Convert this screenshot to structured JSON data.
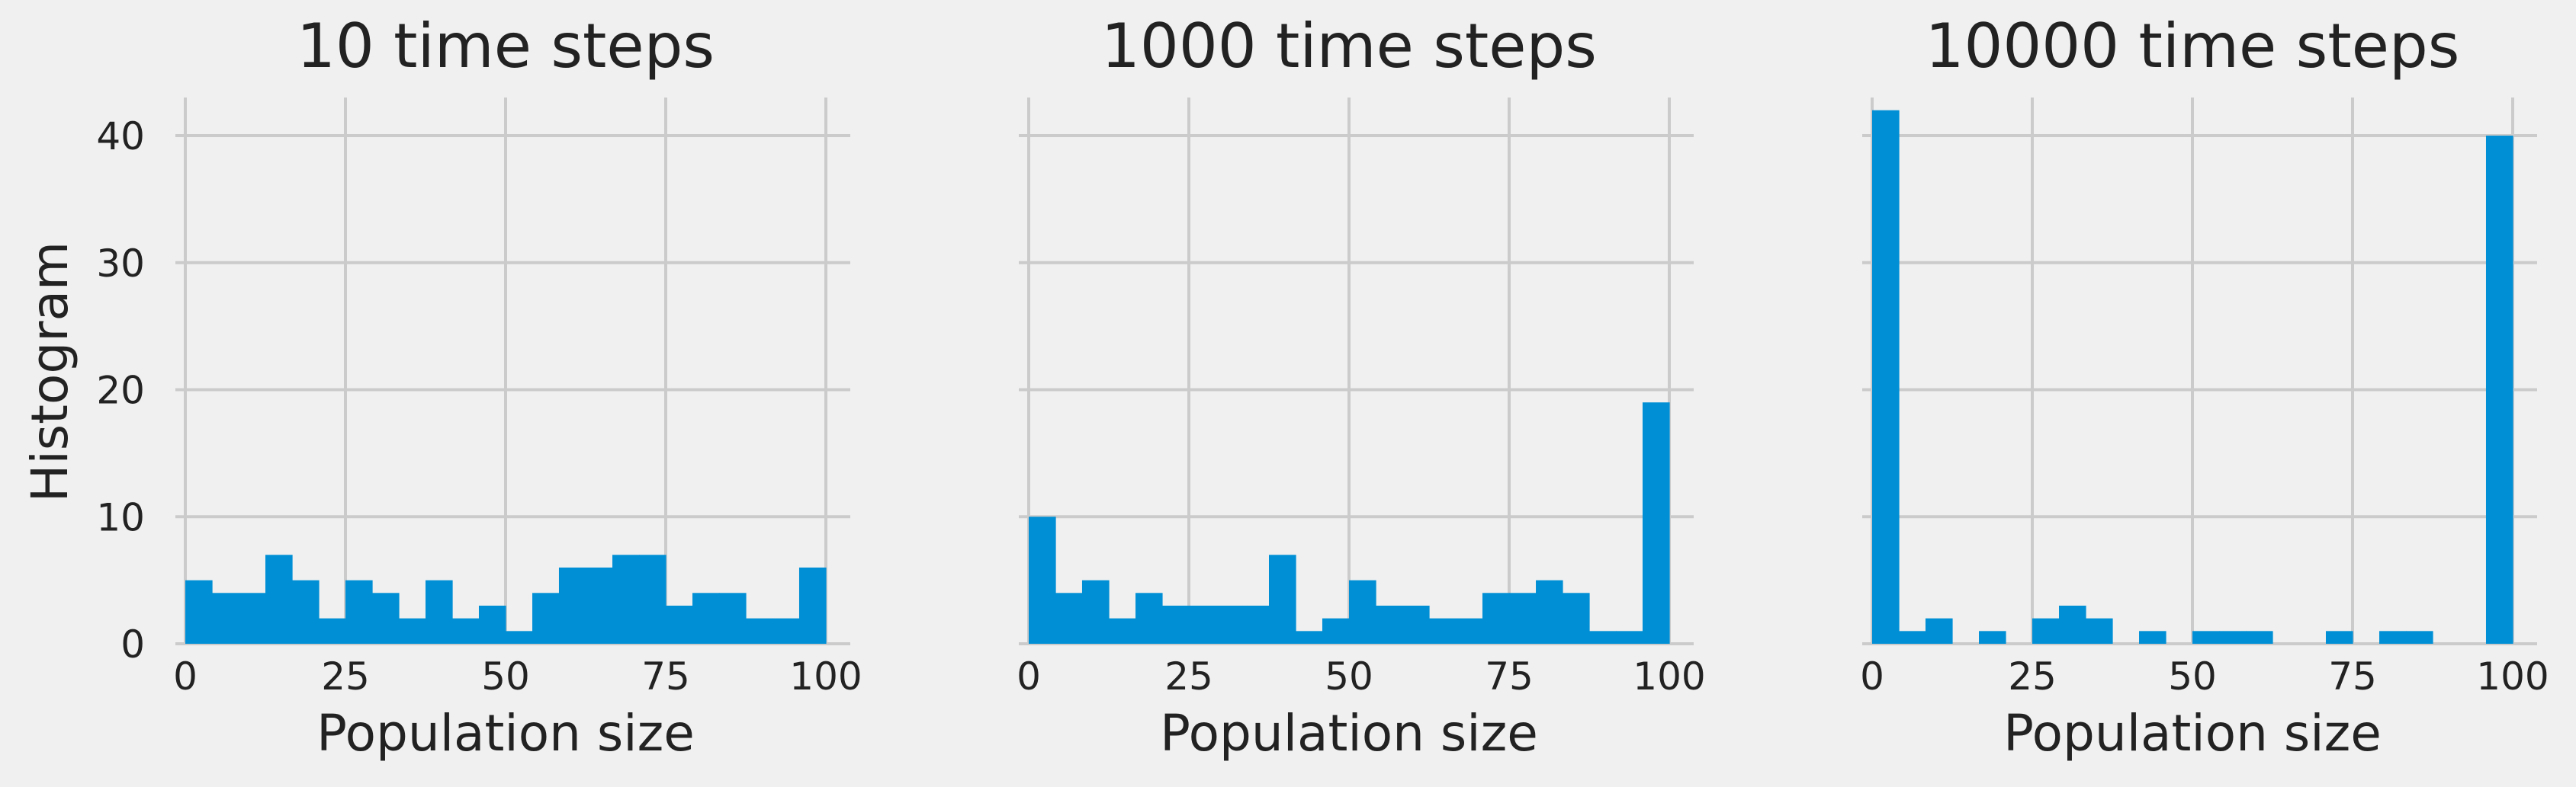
{
  "colors": {
    "background": "#f0f0f0",
    "bar": "#008fd5",
    "grid": "#cbcbcb",
    "text": "#222222"
  },
  "chart_data": [
    {
      "type": "bar",
      "title": "10 time steps",
      "xlabel": "Population size",
      "ylabel": "Histogram",
      "x_range": [
        0,
        100
      ],
      "ylim": [
        0,
        43
      ],
      "xticks": [
        0,
        25,
        50,
        75,
        100
      ],
      "yticks": [
        0,
        10,
        20,
        30,
        40
      ],
      "grid": true,
      "bin_edges": [
        0,
        4.17,
        8.33,
        12.5,
        16.67,
        20.83,
        25,
        29.17,
        33.33,
        37.5,
        41.67,
        45.83,
        50,
        54.17,
        58.33,
        62.5,
        66.67,
        70.83,
        75,
        79.17,
        83.33,
        87.5,
        91.67,
        95.83,
        100
      ],
      "values": [
        5,
        4,
        4,
        7,
        5,
        2,
        5,
        4,
        2,
        5,
        2,
        3,
        1,
        4,
        6,
        6,
        7,
        7,
        3,
        4,
        4,
        2,
        2,
        6
      ]
    },
    {
      "type": "bar",
      "title": "1000 time steps",
      "xlabel": "Population size",
      "ylabel": "",
      "x_range": [
        0,
        100
      ],
      "ylim": [
        0,
        43
      ],
      "xticks": [
        0,
        25,
        50,
        75,
        100
      ],
      "yticks": [
        0,
        10,
        20,
        30,
        40
      ],
      "grid": true,
      "bin_edges": [
        0,
        4.17,
        8.33,
        12.5,
        16.67,
        20.83,
        25,
        29.17,
        33.33,
        37.5,
        41.67,
        45.83,
        50,
        54.17,
        58.33,
        62.5,
        66.67,
        70.83,
        75,
        79.17,
        83.33,
        87.5,
        91.67,
        95.83,
        100
      ],
      "values": [
        10,
        4,
        5,
        2,
        4,
        3,
        3,
        3,
        3,
        7,
        1,
        2,
        5,
        3,
        3,
        2,
        2,
        4,
        4,
        5,
        4,
        1,
        1,
        19
      ]
    },
    {
      "type": "bar",
      "title": "10000 time steps",
      "xlabel": "Population size",
      "ylabel": "",
      "x_range": [
        0,
        100
      ],
      "ylim": [
        0,
        43
      ],
      "xticks": [
        0,
        25,
        50,
        75,
        100
      ],
      "yticks": [
        0,
        10,
        20,
        30,
        40
      ],
      "grid": true,
      "bin_edges": [
        0,
        4.17,
        8.33,
        12.5,
        16.67,
        20.83,
        25,
        29.17,
        33.33,
        37.5,
        41.67,
        45.83,
        50,
        54.17,
        58.33,
        62.5,
        66.67,
        70.83,
        75,
        79.17,
        83.33,
        87.5,
        91.67,
        95.83,
        100
      ],
      "values": [
        42,
        1,
        2,
        0,
        1,
        0,
        2,
        3,
        2,
        0,
        1,
        0,
        1,
        1,
        1,
        0,
        0,
        1,
        0,
        1,
        1,
        0,
        0,
        40
      ]
    }
  ]
}
